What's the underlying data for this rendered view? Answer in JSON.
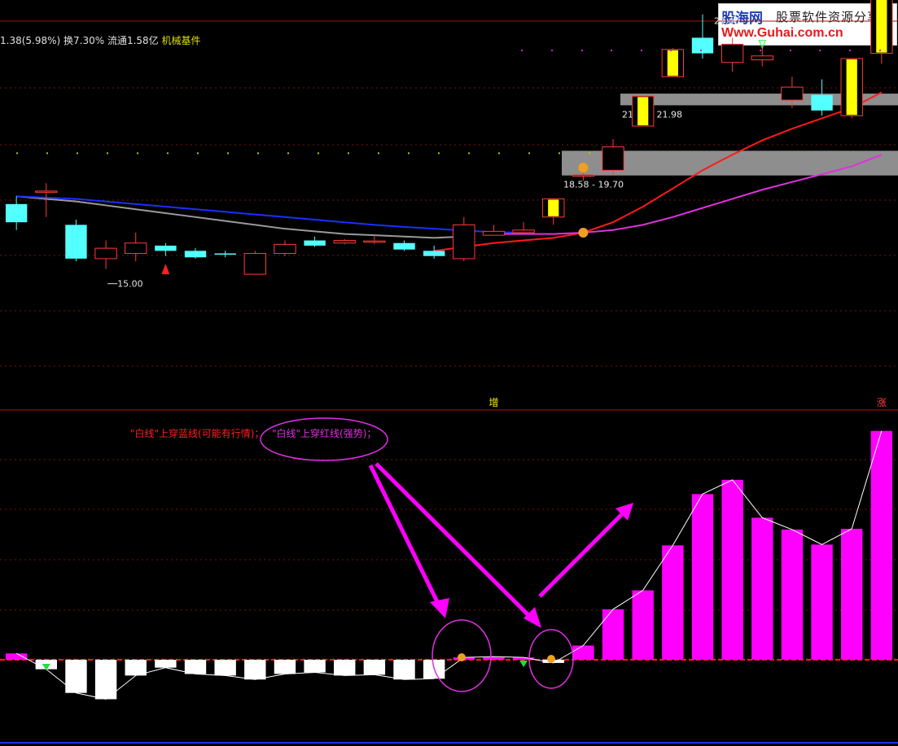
{
  "header": {
    "quote_text": "1.38(5.98%) 换7.30% 流通1.58亿",
    "industry": "机械基件"
  },
  "watermark": {
    "brand": "股海网",
    "tagline": "股票软件资源分享",
    "url": "Www.Guhai.com.cn"
  },
  "price_panel": {
    "ylim": [
      14.2,
      28.6
    ],
    "candles": [
      {
        "o": 22.0,
        "c": 21.3,
        "h": 22.3,
        "l": 21.0,
        "fill": "cyan"
      },
      {
        "o": 22.5,
        "c": 22.5,
        "h": 22.8,
        "l": 21.5,
        "fill": "none"
      },
      {
        "o": 21.2,
        "c": 19.9,
        "h": 21.4,
        "l": 19.8,
        "fill": "cyan"
      },
      {
        "o": 19.9,
        "c": 20.3,
        "h": 20.6,
        "l": 19.5,
        "fill": "none"
      },
      {
        "o": 20.1,
        "c": 20.5,
        "h": 20.9,
        "l": 19.8,
        "fill": "none"
      },
      {
        "o": 20.4,
        "c": 20.2,
        "h": 20.5,
        "l": 20.0,
        "fill": "cyan"
      },
      {
        "o": 20.2,
        "c": 19.95,
        "h": 20.3,
        "l": 19.9,
        "fill": "cyan"
      },
      {
        "o": 20.1,
        "c": 20.1,
        "h": 20.2,
        "l": 19.95,
        "fill": "cyan"
      },
      {
        "o": 19.3,
        "c": 20.1,
        "h": 20.2,
        "l": 19.3,
        "fill": "none"
      },
      {
        "o": 20.1,
        "c": 20.45,
        "h": 20.6,
        "l": 20.0,
        "fill": "none"
      },
      {
        "o": 20.6,
        "c": 20.4,
        "h": 20.75,
        "l": 20.35,
        "fill": "cyan"
      },
      {
        "o": 20.5,
        "c": 20.6,
        "h": 20.65,
        "l": 20.45,
        "fill": "none"
      },
      {
        "o": 20.58,
        "c": 20.58,
        "h": 20.8,
        "l": 20.45,
        "fill": "none"
      },
      {
        "o": 20.5,
        "c": 20.25,
        "h": 20.6,
        "l": 20.2,
        "fill": "cyan"
      },
      {
        "o": 20.2,
        "c": 20.0,
        "h": 20.4,
        "l": 19.9,
        "fill": "cyan"
      },
      {
        "o": 19.9,
        "c": 21.2,
        "h": 21.5,
        "l": 19.8,
        "fill": "none"
      },
      {
        "o": 20.8,
        "c": 20.95,
        "h": 21.2,
        "l": 20.8,
        "fill": "none"
      },
      {
        "o": 20.9,
        "c": 21.0,
        "h": 21.3,
        "l": 20.9,
        "fill": "none"
      },
      {
        "o": 21.5,
        "c": 22.2,
        "h": 22.2,
        "l": 21.2,
        "fill": "yellow"
      },
      {
        "o": 23.12,
        "c": 23.12,
        "h": 23.3,
        "l": 22.9,
        "fill": "none"
      },
      {
        "o": 23.3,
        "c": 24.2,
        "h": 24.5,
        "l": 23.1,
        "fill": "none"
      },
      {
        "o": 25.0,
        "c": 26.15,
        "h": 26.15,
        "l": 25.0,
        "fill": "yellow"
      },
      {
        "o": 26.9,
        "c": 27.95,
        "h": 28.0,
        "l": 26.9,
        "fill": "yellow"
      },
      {
        "o": 28.4,
        "c": 27.8,
        "h": 29.3,
        "l": 27.6,
        "fill": "cyan"
      },
      {
        "o": 27.45,
        "c": 28.15,
        "h": 28.4,
        "l": 27.1,
        "fill": "none"
      },
      {
        "o": 27.55,
        "c": 27.7,
        "h": 28.1,
        "l": 27.3,
        "fill": "none"
      },
      {
        "o": 26.0,
        "c": 26.5,
        "h": 26.9,
        "l": 25.7,
        "fill": "none"
      },
      {
        "o": 26.2,
        "c": 25.6,
        "h": 26.8,
        "l": 25.4,
        "fill": "cyan"
      },
      {
        "o": 25.4,
        "c": 27.6,
        "h": 27.6,
        "l": 25.3,
        "fill": "yellow"
      },
      {
        "o": 27.8,
        "c": 29.9,
        "h": 29.9,
        "l": 27.4,
        "fill": "yellow"
      }
    ],
    "ma_gray": [
      22.3,
      22.2,
      22.1,
      21.95,
      21.8,
      21.65,
      21.5,
      21.35,
      21.2,
      21.05,
      20.95,
      20.85,
      20.8,
      20.75,
      20.7,
      20.75
    ],
    "ma_blue": [
      22.3,
      22.25,
      22.2,
      22.1,
      22.0,
      21.9,
      21.8,
      21.7,
      21.6,
      21.5,
      21.4,
      21.3,
      21.2,
      21.12,
      21.05,
      20.98,
      20.92,
      20.9
    ],
    "ma_red": [
      20.2,
      20.35,
      20.5,
      20.6,
      20.7,
      20.9,
      21.3,
      21.9,
      22.6,
      23.3,
      23.9,
      24.45,
      24.9,
      25.3,
      25.7,
      26.3
    ],
    "ma_magenta": [
      20.85,
      20.85,
      20.85,
      20.9,
      21.0,
      21.2,
      21.5,
      21.85,
      22.2,
      22.55,
      22.85,
      23.15,
      23.45,
      23.9
    ],
    "zones": [
      {
        "label": "21.40 - 21.98",
        "low": 25.8,
        "high": 26.25
      },
      {
        "label": "18.58 - 19.70",
        "low": 23.1,
        "high": 24.05
      }
    ],
    "labels": {
      "low": "15.00",
      "high": "27.40"
    },
    "markers": {
      "zeng": "增",
      "zhang": "涨"
    }
  },
  "indicator_panel": {
    "ylim": [
      -5,
      30
    ],
    "values": [
      0.8,
      -1.2,
      -4.2,
      -5.0,
      -2.0,
      -1.0,
      -1.8,
      -2.0,
      -2.5,
      -1.8,
      -1.6,
      -2.0,
      -1.9,
      -2.5,
      -2.4,
      0.3,
      0.4,
      0.3,
      -0.4,
      1.8,
      6.4,
      8.8,
      14.5,
      21.0,
      22.8,
      18.0,
      16.5,
      14.6,
      16.6,
      29.0
    ],
    "annotation_1": "\"白线\"上穿蓝线(可能有行情)；",
    "annotation_2": "\"白线\"上穿红线(强势)；"
  },
  "colors": {
    "up": "#ff3b3b",
    "cyan": "#54ffff",
    "yellow": "#ffff00",
    "ma_gray": "#9a9a9a",
    "ma_blue": "#1a2fff",
    "ma_red": "#ff1a1a",
    "ma_magenta": "#e030e0",
    "bar": "#ff00ff",
    "zone": "#9a9a9a"
  }
}
